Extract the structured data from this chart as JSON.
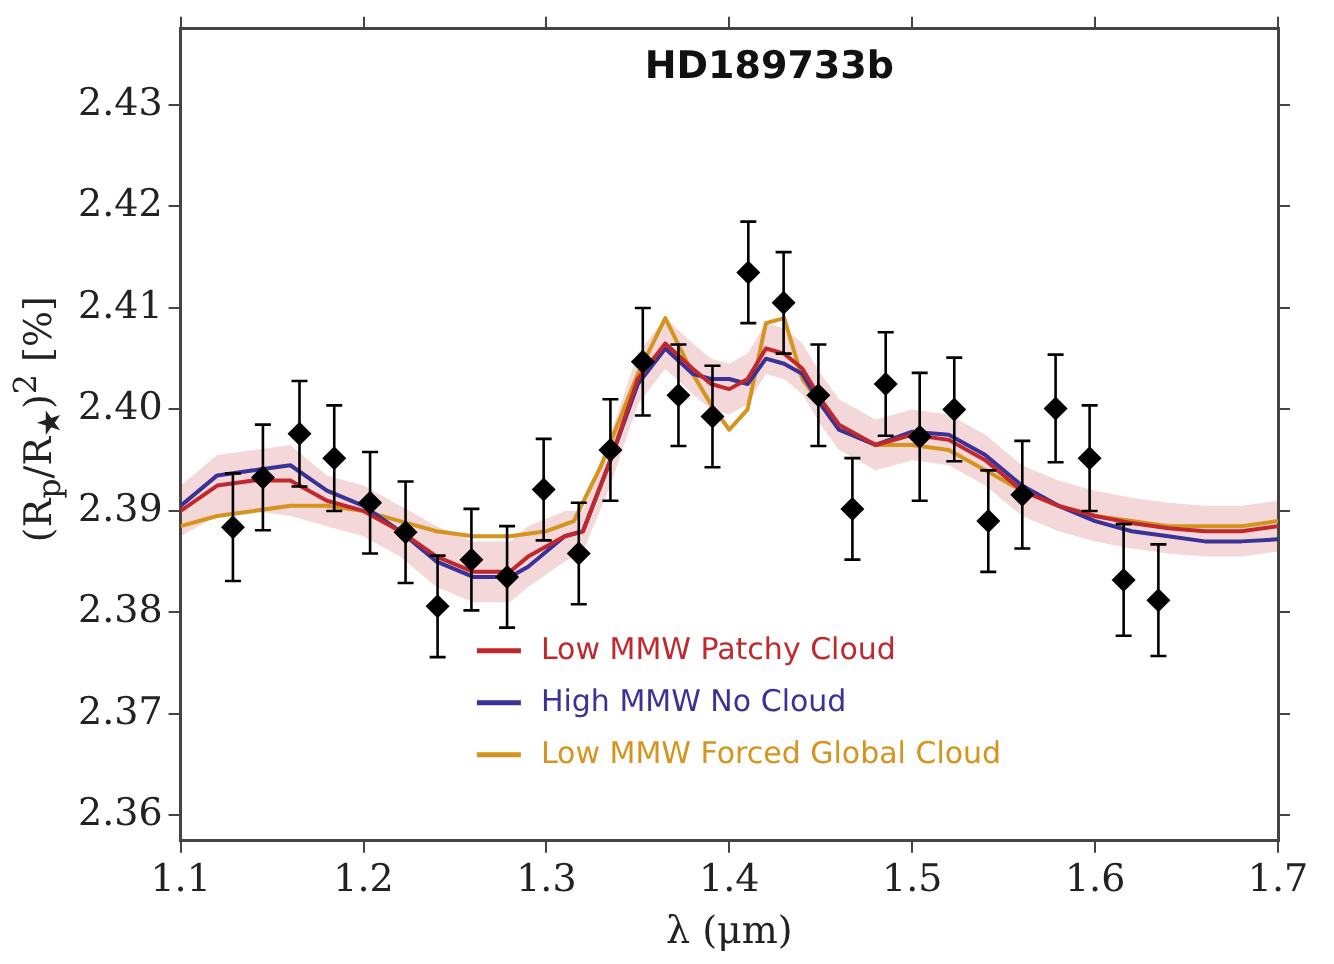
{
  "chart_data": {
    "type": "line",
    "title": "HD189733b",
    "xlabel": "λ (μm)",
    "ylabel": "(R$_{p}$/R$_{★}$)$^{2}$ [%]",
    "xlim": [
      1.1,
      1.7
    ],
    "xticks": [
      1.1,
      1.2,
      1.3,
      1.4,
      1.5,
      1.6,
      1.7
    ],
    "ylim": [
      2.3575,
      2.4375
    ],
    "yticks": [
      2.36,
      2.37,
      2.38,
      2.39,
      {
        "value": 2.4,
        "label": "2.40"
      },
      2.41,
      2.42,
      2.43
    ],
    "grid": false,
    "legend": "bottom",
    "line_style": "solid",
    "marker": "none",
    "series": [
      {
        "name": "Low MMW Patchy Cloud",
        "type": "line",
        "color": "#c0282d",
        "x": [
          1.1,
          1.12,
          1.14,
          1.16,
          1.18,
          1.2,
          1.22,
          1.24,
          1.26,
          1.28,
          1.29,
          1.31,
          1.32,
          1.335,
          1.35,
          1.365,
          1.38,
          1.39,
          1.4,
          1.41,
          1.42,
          1.43,
          1.44,
          1.45,
          1.46,
          1.48,
          1.5,
          1.52,
          1.54,
          1.56,
          1.58,
          1.6,
          1.62,
          1.64,
          1.66,
          1.68,
          1.7
        ],
        "values": [
          2.39,
          2.3925,
          2.393,
          2.393,
          2.391,
          2.39,
          2.388,
          2.3855,
          2.384,
          2.384,
          2.3855,
          2.3875,
          2.388,
          2.395,
          2.403,
          2.4065,
          2.404,
          2.4025,
          2.402,
          2.403,
          2.406,
          2.4055,
          2.404,
          2.401,
          2.3985,
          2.3965,
          2.3975,
          2.397,
          2.395,
          2.392,
          2.3905,
          2.3895,
          2.3888,
          2.3883,
          2.388,
          2.388,
          2.3885
        ],
        "lower": [
          2.3875,
          2.3895,
          2.39,
          2.3895,
          2.3885,
          2.3875,
          2.3855,
          2.3825,
          2.381,
          2.381,
          2.3825,
          2.385,
          2.386,
          2.3925,
          2.4005,
          2.404,
          2.4015,
          2.4,
          2.3995,
          2.4005,
          2.4035,
          2.403,
          2.4015,
          2.3985,
          2.396,
          2.394,
          2.395,
          2.3945,
          2.3925,
          2.3895,
          2.388,
          2.387,
          2.3863,
          2.3858,
          2.3855,
          2.3855,
          2.386
        ],
        "upper": [
          2.3925,
          2.3955,
          2.396,
          2.3965,
          2.3935,
          2.3925,
          2.3905,
          2.3885,
          2.387,
          2.387,
          2.3885,
          2.39,
          2.39,
          2.3975,
          2.4055,
          2.409,
          2.4065,
          2.405,
          2.4045,
          2.4055,
          2.4085,
          2.408,
          2.4065,
          2.4035,
          2.401,
          2.399,
          2.4,
          2.3995,
          2.3975,
          2.3945,
          2.393,
          2.392,
          2.3913,
          2.3908,
          2.3905,
          2.3905,
          2.391
        ]
      },
      {
        "name": "High MMW No Cloud",
        "type": "line",
        "color": "#3a3296",
        "x": [
          1.1,
          1.12,
          1.14,
          1.16,
          1.18,
          1.2,
          1.22,
          1.24,
          1.26,
          1.28,
          1.29,
          1.31,
          1.32,
          1.335,
          1.35,
          1.365,
          1.38,
          1.39,
          1.4,
          1.41,
          1.42,
          1.43,
          1.44,
          1.45,
          1.46,
          1.48,
          1.5,
          1.52,
          1.54,
          1.56,
          1.58,
          1.6,
          1.62,
          1.64,
          1.66,
          1.68,
          1.7
        ],
        "values": [
          2.3905,
          2.3935,
          2.394,
          2.3945,
          2.392,
          2.3905,
          2.388,
          2.385,
          2.3835,
          2.3835,
          2.3845,
          2.3875,
          2.388,
          2.395,
          2.4025,
          2.406,
          2.4035,
          2.403,
          2.403,
          2.4025,
          2.405,
          2.4045,
          2.4035,
          2.4005,
          2.398,
          2.3965,
          2.3978,
          2.3975,
          2.3955,
          2.3925,
          2.3905,
          2.389,
          2.388,
          2.3875,
          2.387,
          2.387,
          2.3872
        ]
      },
      {
        "name": "Low MMW Forced Global Cloud",
        "type": "line",
        "color": "#d4941e",
        "x": [
          1.1,
          1.12,
          1.14,
          1.16,
          1.18,
          1.2,
          1.22,
          1.24,
          1.26,
          1.28,
          1.3,
          1.315,
          1.33,
          1.35,
          1.365,
          1.38,
          1.39,
          1.4,
          1.41,
          1.42,
          1.43,
          1.44,
          1.45,
          1.46,
          1.48,
          1.5,
          1.52,
          1.54,
          1.56,
          1.58,
          1.6,
          1.62,
          1.64,
          1.66,
          1.68,
          1.7
        ],
        "values": [
          2.3885,
          2.3895,
          2.39,
          2.3905,
          2.3905,
          2.39,
          2.389,
          2.388,
          2.3875,
          2.3875,
          2.388,
          2.389,
          2.3945,
          2.4035,
          2.409,
          2.4035,
          2.4005,
          2.398,
          2.4,
          2.4085,
          2.409,
          2.403,
          2.4005,
          2.398,
          2.3965,
          2.3965,
          2.396,
          2.394,
          2.392,
          2.3905,
          2.3895,
          2.389,
          2.3885,
          2.3885,
          2.3885,
          2.389
        ]
      },
      {
        "type": "scatter",
        "color": "#000000",
        "marker": "diamond",
        "x": [
          1.1286,
          1.145,
          1.165,
          1.184,
          1.2036,
          1.223,
          1.2405,
          1.259,
          1.2785,
          1.2985,
          1.3177,
          1.335,
          1.3527,
          1.3722,
          1.3908,
          1.4104,
          1.4297,
          1.4487,
          1.4673,
          1.4855,
          1.5041,
          1.523,
          1.5416,
          1.5602,
          1.5784,
          1.597,
          1.6156,
          1.6346
        ],
        "values": [
          2.3884,
          2.3933,
          2.3976,
          2.3952,
          2.3908,
          2.3879,
          2.3806,
          2.3852,
          2.3835,
          2.3921,
          2.3858,
          2.396,
          2.4047,
          2.4014,
          2.3993,
          2.4135,
          2.4105,
          2.4014,
          2.3902,
          2.4025,
          2.3973,
          2.4,
          2.389,
          2.3916,
          2.4001,
          2.3952,
          2.3832,
          2.3812
        ],
        "errors": [
          0.0053,
          0.0052,
          0.0052,
          0.0052,
          0.005,
          0.005,
          0.005,
          0.005,
          0.005,
          0.005,
          0.005,
          0.005,
          0.0053,
          0.005,
          0.005,
          0.005,
          0.005,
          0.005,
          0.005,
          0.0051,
          0.0063,
          0.0051,
          0.005,
          0.0053,
          0.0053,
          0.0052,
          0.0055,
          0.0055
        ]
      }
    ]
  }
}
